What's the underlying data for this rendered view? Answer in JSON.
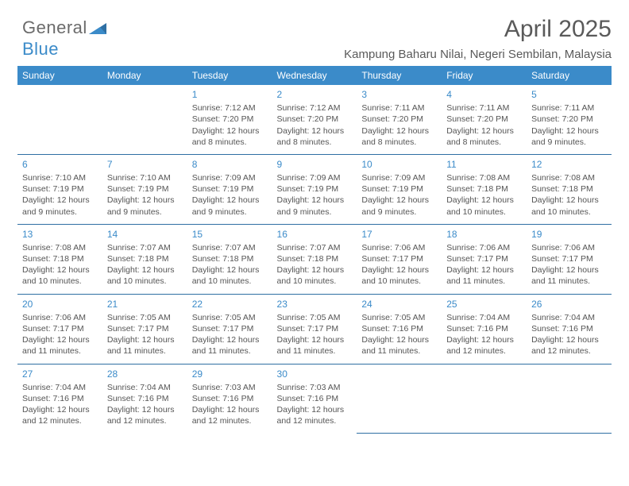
{
  "brand": {
    "name": "General",
    "sub": "Blue"
  },
  "header": {
    "title": "April 2025",
    "location": "Kampung Baharu Nilai, Negeri Sembilan, Malaysia"
  },
  "columns": [
    "Sunday",
    "Monday",
    "Tuesday",
    "Wednesday",
    "Thursday",
    "Friday",
    "Saturday"
  ],
  "colors": {
    "header_bg": "#3b8bc9",
    "header_text": "#ffffff",
    "rule": "#2f6fa3",
    "daynum": "#3b8bc9",
    "body_text": "#555555",
    "title_text": "#5a5a5a",
    "background": "#ffffff"
  },
  "typography": {
    "title_fontsize": 30,
    "location_fontsize": 15,
    "colhead_fontsize": 12,
    "cell_fontsize": 10.5,
    "daynum_fontsize": 12
  },
  "weeks": [
    [
      null,
      null,
      {
        "n": "1",
        "sr": "Sunrise: 7:12 AM",
        "ss": "Sunset: 7:20 PM",
        "d1": "Daylight: 12 hours",
        "d2": "and 8 minutes."
      },
      {
        "n": "2",
        "sr": "Sunrise: 7:12 AM",
        "ss": "Sunset: 7:20 PM",
        "d1": "Daylight: 12 hours",
        "d2": "and 8 minutes."
      },
      {
        "n": "3",
        "sr": "Sunrise: 7:11 AM",
        "ss": "Sunset: 7:20 PM",
        "d1": "Daylight: 12 hours",
        "d2": "and 8 minutes."
      },
      {
        "n": "4",
        "sr": "Sunrise: 7:11 AM",
        "ss": "Sunset: 7:20 PM",
        "d1": "Daylight: 12 hours",
        "d2": "and 8 minutes."
      },
      {
        "n": "5",
        "sr": "Sunrise: 7:11 AM",
        "ss": "Sunset: 7:20 PM",
        "d1": "Daylight: 12 hours",
        "d2": "and 9 minutes."
      }
    ],
    [
      {
        "n": "6",
        "sr": "Sunrise: 7:10 AM",
        "ss": "Sunset: 7:19 PM",
        "d1": "Daylight: 12 hours",
        "d2": "and 9 minutes."
      },
      {
        "n": "7",
        "sr": "Sunrise: 7:10 AM",
        "ss": "Sunset: 7:19 PM",
        "d1": "Daylight: 12 hours",
        "d2": "and 9 minutes."
      },
      {
        "n": "8",
        "sr": "Sunrise: 7:09 AM",
        "ss": "Sunset: 7:19 PM",
        "d1": "Daylight: 12 hours",
        "d2": "and 9 minutes."
      },
      {
        "n": "9",
        "sr": "Sunrise: 7:09 AM",
        "ss": "Sunset: 7:19 PM",
        "d1": "Daylight: 12 hours",
        "d2": "and 9 minutes."
      },
      {
        "n": "10",
        "sr": "Sunrise: 7:09 AM",
        "ss": "Sunset: 7:19 PM",
        "d1": "Daylight: 12 hours",
        "d2": "and 9 minutes."
      },
      {
        "n": "11",
        "sr": "Sunrise: 7:08 AM",
        "ss": "Sunset: 7:18 PM",
        "d1": "Daylight: 12 hours",
        "d2": "and 10 minutes."
      },
      {
        "n": "12",
        "sr": "Sunrise: 7:08 AM",
        "ss": "Sunset: 7:18 PM",
        "d1": "Daylight: 12 hours",
        "d2": "and 10 minutes."
      }
    ],
    [
      {
        "n": "13",
        "sr": "Sunrise: 7:08 AM",
        "ss": "Sunset: 7:18 PM",
        "d1": "Daylight: 12 hours",
        "d2": "and 10 minutes."
      },
      {
        "n": "14",
        "sr": "Sunrise: 7:07 AM",
        "ss": "Sunset: 7:18 PM",
        "d1": "Daylight: 12 hours",
        "d2": "and 10 minutes."
      },
      {
        "n": "15",
        "sr": "Sunrise: 7:07 AM",
        "ss": "Sunset: 7:18 PM",
        "d1": "Daylight: 12 hours",
        "d2": "and 10 minutes."
      },
      {
        "n": "16",
        "sr": "Sunrise: 7:07 AM",
        "ss": "Sunset: 7:18 PM",
        "d1": "Daylight: 12 hours",
        "d2": "and 10 minutes."
      },
      {
        "n": "17",
        "sr": "Sunrise: 7:06 AM",
        "ss": "Sunset: 7:17 PM",
        "d1": "Daylight: 12 hours",
        "d2": "and 10 minutes."
      },
      {
        "n": "18",
        "sr": "Sunrise: 7:06 AM",
        "ss": "Sunset: 7:17 PM",
        "d1": "Daylight: 12 hours",
        "d2": "and 11 minutes."
      },
      {
        "n": "19",
        "sr": "Sunrise: 7:06 AM",
        "ss": "Sunset: 7:17 PM",
        "d1": "Daylight: 12 hours",
        "d2": "and 11 minutes."
      }
    ],
    [
      {
        "n": "20",
        "sr": "Sunrise: 7:06 AM",
        "ss": "Sunset: 7:17 PM",
        "d1": "Daylight: 12 hours",
        "d2": "and 11 minutes."
      },
      {
        "n": "21",
        "sr": "Sunrise: 7:05 AM",
        "ss": "Sunset: 7:17 PM",
        "d1": "Daylight: 12 hours",
        "d2": "and 11 minutes."
      },
      {
        "n": "22",
        "sr": "Sunrise: 7:05 AM",
        "ss": "Sunset: 7:17 PM",
        "d1": "Daylight: 12 hours",
        "d2": "and 11 minutes."
      },
      {
        "n": "23",
        "sr": "Sunrise: 7:05 AM",
        "ss": "Sunset: 7:17 PM",
        "d1": "Daylight: 12 hours",
        "d2": "and 11 minutes."
      },
      {
        "n": "24",
        "sr": "Sunrise: 7:05 AM",
        "ss": "Sunset: 7:16 PM",
        "d1": "Daylight: 12 hours",
        "d2": "and 11 minutes."
      },
      {
        "n": "25",
        "sr": "Sunrise: 7:04 AM",
        "ss": "Sunset: 7:16 PM",
        "d1": "Daylight: 12 hours",
        "d2": "and 12 minutes."
      },
      {
        "n": "26",
        "sr": "Sunrise: 7:04 AM",
        "ss": "Sunset: 7:16 PM",
        "d1": "Daylight: 12 hours",
        "d2": "and 12 minutes."
      }
    ],
    [
      {
        "n": "27",
        "sr": "Sunrise: 7:04 AM",
        "ss": "Sunset: 7:16 PM",
        "d1": "Daylight: 12 hours",
        "d2": "and 12 minutes."
      },
      {
        "n": "28",
        "sr": "Sunrise: 7:04 AM",
        "ss": "Sunset: 7:16 PM",
        "d1": "Daylight: 12 hours",
        "d2": "and 12 minutes."
      },
      {
        "n": "29",
        "sr": "Sunrise: 7:03 AM",
        "ss": "Sunset: 7:16 PM",
        "d1": "Daylight: 12 hours",
        "d2": "and 12 minutes."
      },
      {
        "n": "30",
        "sr": "Sunrise: 7:03 AM",
        "ss": "Sunset: 7:16 PM",
        "d1": "Daylight: 12 hours",
        "d2": "and 12 minutes."
      },
      null,
      null,
      null
    ]
  ]
}
